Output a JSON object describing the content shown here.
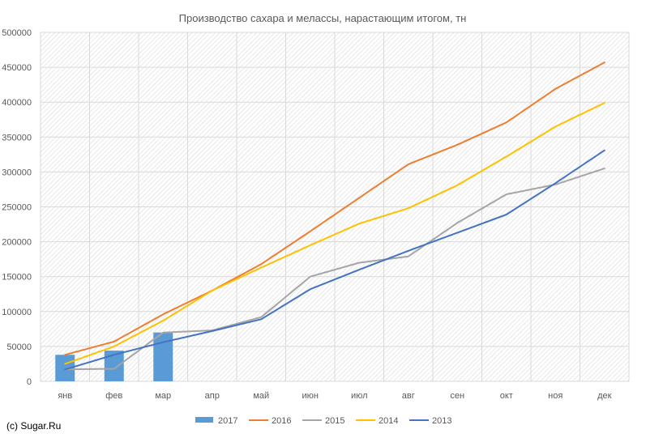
{
  "chart_data": {
    "type": "bar+line",
    "title": "Производство сахара и мелассы, нарастающим итогом, тн",
    "categories": [
      "янв",
      "фев",
      "мар",
      "апр",
      "май",
      "июн",
      "июл",
      "авг",
      "сен",
      "окт",
      "ноя",
      "дек"
    ],
    "ylim": [
      0,
      500000
    ],
    "yticks": [
      0,
      50000,
      100000,
      150000,
      200000,
      250000,
      300000,
      350000,
      400000,
      450000,
      500000
    ],
    "grid": true,
    "legend_position": "bottom",
    "series": [
      {
        "name": "2017",
        "kind": "bar",
        "color": "#5b9bd5",
        "values": [
          38000,
          44000,
          70000,
          null,
          null,
          null,
          null,
          null,
          null,
          null,
          null,
          null
        ]
      },
      {
        "name": "2016",
        "kind": "line",
        "color": "#ed7d31",
        "values": [
          38000,
          57000,
          96000,
          130000,
          168000,
          215000,
          263000,
          311000,
          339000,
          371000,
          419000,
          457000
        ]
      },
      {
        "name": "2015",
        "kind": "line",
        "color": "#a5a5a5",
        "values": [
          17000,
          18000,
          70000,
          73000,
          92000,
          150000,
          170000,
          179000,
          227000,
          268000,
          282000,
          305000
        ]
      },
      {
        "name": "2014",
        "kind": "line",
        "color": "#ffc000",
        "values": [
          25000,
          50000,
          87000,
          130000,
          163000,
          195000,
          226000,
          248000,
          281000,
          322000,
          365000,
          399000
        ]
      },
      {
        "name": "2013",
        "kind": "line",
        "color": "#4472c4",
        "values": [
          17000,
          38000,
          56000,
          72000,
          89000,
          132000,
          160000,
          187000,
          213000,
          239000,
          284000,
          331000
        ]
      }
    ]
  },
  "credit": "(c) Sugar.Ru"
}
